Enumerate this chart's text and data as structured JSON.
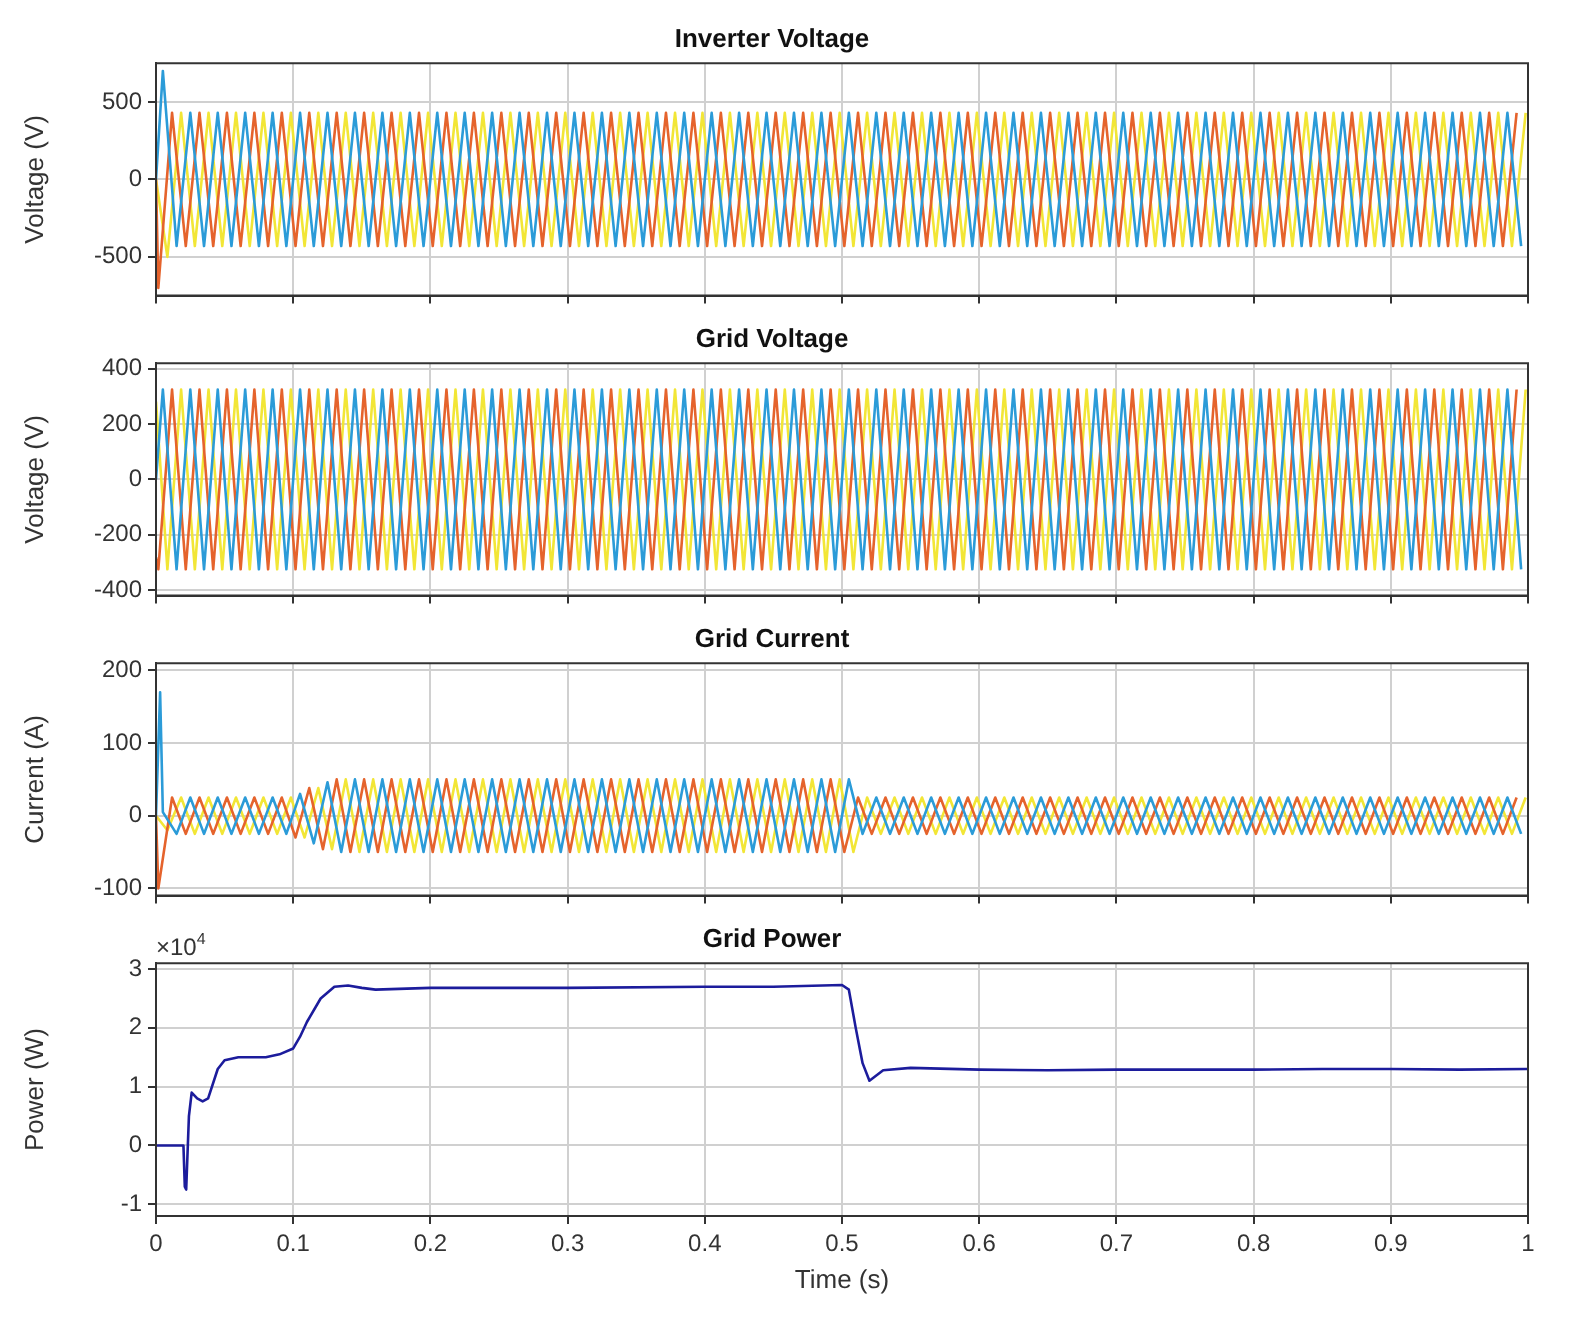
{
  "chart_data": [
    {
      "type": "line",
      "title": "Inverter Voltage",
      "ylabel": "Voltage (V)",
      "xlim": [
        0,
        1
      ],
      "xticks": [
        0,
        0.1,
        0.2,
        0.3,
        0.4,
        0.5,
        0.6,
        0.7,
        0.8,
        0.9,
        1
      ],
      "ylim": [
        -750,
        750
      ],
      "yticks": [
        -500,
        0,
        500
      ],
      "grid": true,
      "tick_labels": "y",
      "series": [
        {
          "color": "#2b9bd8",
          "x": [
            0,
            0.005,
            0.015,
            0.025,
            0.035,
            0.045,
            0.055,
            0.065,
            0.075,
            0.085,
            0.095,
            0.105,
            0.115,
            0.125,
            0.135,
            0.145,
            0.155,
            0.165,
            0.175,
            0.185,
            0.195,
            0.205,
            0.215,
            0.225,
            0.235,
            0.245,
            0.255,
            0.265,
            0.275,
            0.285,
            0.295,
            0.305,
            0.315,
            0.325,
            0.335,
            0.345,
            0.355,
            0.365,
            0.375,
            0.385,
            0.395,
            0.405,
            0.415,
            0.425,
            0.435,
            0.445,
            0.455,
            0.465,
            0.475,
            0.485,
            0.495,
            0.505,
            0.515,
            0.525,
            0.535,
            0.545,
            0.555,
            0.565,
            0.575,
            0.585,
            0.595,
            0.605,
            0.615,
            0.625,
            0.635,
            0.645,
            0.655,
            0.665,
            0.675,
            0.685,
            0.695,
            0.705,
            0.715,
            0.725,
            0.735,
            0.745,
            0.755,
            0.765,
            0.775,
            0.785,
            0.795,
            0.805,
            0.815,
            0.825,
            0.835,
            0.845,
            0.855,
            0.865,
            0.875,
            0.885,
            0.895,
            0.905,
            0.915,
            0.925,
            0.935,
            0.945,
            0.955,
            0.965,
            0.975,
            0.985,
            0.995
          ],
          "values": [
            0,
            700,
            -430,
            430,
            -430,
            430,
            -430,
            430,
            -430,
            430,
            -430,
            430,
            -430,
            430,
            -430,
            430,
            -430,
            430,
            -430,
            430,
            -430,
            430,
            -430,
            430,
            -430,
            430,
            -430,
            430,
            -430,
            430,
            -430,
            430,
            -430,
            430,
            -430,
            430,
            -430,
            430,
            -430,
            430,
            -430,
            430,
            -430,
            430,
            -430,
            430,
            -430,
            430,
            -430,
            430,
            -430,
            430,
            -430,
            430,
            -430,
            430,
            -430,
            430,
            -430,
            430,
            -430,
            430,
            -430,
            430,
            -430,
            430,
            -430,
            430,
            -430,
            430,
            -430,
            430,
            -430,
            430,
            -430,
            430,
            -430,
            430,
            -430,
            430,
            -430,
            430,
            -430,
            430,
            -430,
            430,
            -430,
            430,
            -430,
            430,
            -430,
            430,
            -430,
            430,
            -430,
            430,
            -430,
            430,
            -430,
            430,
            -430
          ]
        },
        {
          "color": "#e5632c",
          "x": [
            0,
            0.0017,
            0.0117,
            0.0217,
            0.0317,
            0.0417,
            0.0517,
            0.0617,
            0.0717,
            0.0817,
            0.0917,
            0.1017,
            0.1117,
            0.1217,
            0.1317,
            0.1417,
            0.1517,
            0.1617,
            0.1717,
            0.1817,
            0.1917,
            0.2017,
            0.2117,
            0.2217,
            0.2317,
            0.2417,
            0.2517,
            0.2617,
            0.2717,
            0.2817,
            0.2917,
            0.3017,
            0.3117,
            0.3217,
            0.3317,
            0.3417,
            0.3517,
            0.3617,
            0.3717,
            0.3817,
            0.3917,
            0.4017,
            0.4117,
            0.4217,
            0.4317,
            0.4417,
            0.4517,
            0.4617,
            0.4717,
            0.4817,
            0.4917,
            0.5017,
            0.5117,
            0.5217,
            0.5317,
            0.5417,
            0.5517,
            0.5617,
            0.5717,
            0.5817,
            0.5917,
            0.6017,
            0.6117,
            0.6217,
            0.6317,
            0.6417,
            0.6517,
            0.6617,
            0.6717,
            0.6817,
            0.6917,
            0.7017,
            0.7117,
            0.7217,
            0.7317,
            0.7417,
            0.7517,
            0.7617,
            0.7717,
            0.7817,
            0.7917,
            0.8017,
            0.8117,
            0.8217,
            0.8317,
            0.8417,
            0.8517,
            0.8617,
            0.8717,
            0.8817,
            0.8917,
            0.9017,
            0.9117,
            0.9217,
            0.9317,
            0.9417,
            0.9517,
            0.9617,
            0.9717,
            0.9817,
            0.9917
          ],
          "values": [
            0,
            -700,
            430,
            -430,
            430,
            -430,
            430,
            -430,
            430,
            -430,
            430,
            -430,
            430,
            -430,
            430,
            -430,
            430,
            -430,
            430,
            -430,
            430,
            -430,
            430,
            -430,
            430,
            -430,
            430,
            -430,
            430,
            -430,
            430,
            -430,
            430,
            -430,
            430,
            -430,
            430,
            -430,
            430,
            -430,
            430,
            -430,
            430,
            -430,
            430,
            -430,
            430,
            -430,
            430,
            -430,
            430,
            -430,
            430,
            -430,
            430,
            -430,
            430,
            -430,
            430,
            -430,
            430,
            -430,
            430,
            -430,
            430,
            -430,
            430,
            -430,
            430,
            -430,
            430,
            -430,
            430,
            -430,
            430,
            -430,
            430,
            -430,
            430,
            -430,
            430,
            -430,
            430,
            -430,
            430,
            -430,
            430,
            -430,
            430,
            -430,
            430,
            -430,
            430,
            -430,
            430,
            -430,
            430,
            -430,
            430,
            -430,
            430
          ]
        },
        {
          "color": "#f2e636",
          "x": [
            0,
            0.0083,
            0.0183,
            0.0283,
            0.0383,
            0.0483,
            0.0583,
            0.0683,
            0.0783,
            0.0883,
            0.0983,
            0.1083,
            0.1183,
            0.1283,
            0.1383,
            0.1483,
            0.1583,
            0.1683,
            0.1783,
            0.1883,
            0.1983,
            0.2083,
            0.2183,
            0.2283,
            0.2383,
            0.2483,
            0.2583,
            0.2683,
            0.2783,
            0.2883,
            0.2983,
            0.3083,
            0.3183,
            0.3283,
            0.3383,
            0.3483,
            0.3583,
            0.3683,
            0.3783,
            0.3883,
            0.3983,
            0.4083,
            0.4183,
            0.4283,
            0.4383,
            0.4483,
            0.4583,
            0.4683,
            0.4783,
            0.4883,
            0.4983,
            0.5083,
            0.5183,
            0.5283,
            0.5383,
            0.5483,
            0.5583,
            0.5683,
            0.5783,
            0.5883,
            0.5983,
            0.6083,
            0.6183,
            0.6283,
            0.6383,
            0.6483,
            0.6583,
            0.6683,
            0.6783,
            0.6883,
            0.6983,
            0.7083,
            0.7183,
            0.7283,
            0.7383,
            0.7483,
            0.7583,
            0.7683,
            0.7783,
            0.7883,
            0.7983,
            0.8083,
            0.8183,
            0.8283,
            0.8383,
            0.8483,
            0.8583,
            0.8683,
            0.8783,
            0.8883,
            0.8983,
            0.9083,
            0.9183,
            0.9283,
            0.9383,
            0.9483,
            0.9583,
            0.9683,
            0.9783,
            0.9883,
            0.9983
          ],
          "values": [
            0,
            -500,
            430,
            -430,
            430,
            -430,
            430,
            -430,
            430,
            -430,
            430,
            -430,
            430,
            -430,
            430,
            -430,
            430,
            -430,
            430,
            -430,
            430,
            -430,
            430,
            -430,
            430,
            -430,
            430,
            -430,
            430,
            -430,
            430,
            -430,
            430,
            -430,
            430,
            -430,
            430,
            -430,
            430,
            -430,
            430,
            -430,
            430,
            -430,
            430,
            -430,
            430,
            -430,
            430,
            -430,
            430,
            -430,
            430,
            -430,
            430,
            -430,
            430,
            -430,
            430,
            -430,
            430,
            -430,
            430,
            -430,
            430,
            -430,
            430,
            -430,
            430,
            -430,
            430,
            -430,
            430,
            -430,
            430,
            -430,
            430,
            -430,
            430,
            -430,
            430,
            -430,
            430,
            -430,
            430,
            -430,
            430,
            -430,
            430,
            -430,
            430,
            -430,
            430,
            -430,
            430,
            -430,
            430,
            -430,
            430,
            -430,
            430
          ]
        }
      ]
    },
    {
      "type": "line",
      "title": "Grid Voltage",
      "ylabel": "Voltage (V)",
      "xlim": [
        0,
        1
      ],
      "xticks": [
        0,
        0.1,
        0.2,
        0.3,
        0.4,
        0.5,
        0.6,
        0.7,
        0.8,
        0.9,
        1
      ],
      "ylim": [
        -420,
        420
      ],
      "yticks": [
        -400,
        -200,
        0,
        200,
        400
      ],
      "grid": true,
      "tick_labels": "y",
      "series": [
        {
          "color": "#2b9bd8",
          "x": [
            0,
            0.005,
            0.015,
            0.025,
            0.035,
            0.045,
            0.055,
            0.065,
            0.075,
            0.085,
            0.095,
            0.105,
            0.115,
            0.125,
            0.135,
            0.145,
            0.155,
            0.165,
            0.175,
            0.185,
            0.195,
            0.205,
            0.215,
            0.225,
            0.235,
            0.245,
            0.255,
            0.265,
            0.275,
            0.285,
            0.295,
            0.305,
            0.315,
            0.325,
            0.335,
            0.345,
            0.355,
            0.365,
            0.375,
            0.385,
            0.395,
            0.405,
            0.415,
            0.425,
            0.435,
            0.445,
            0.455,
            0.465,
            0.475,
            0.485,
            0.495,
            0.505,
            0.515,
            0.525,
            0.535,
            0.545,
            0.555,
            0.565,
            0.575,
            0.585,
            0.595,
            0.605,
            0.615,
            0.625,
            0.635,
            0.645,
            0.655,
            0.665,
            0.675,
            0.685,
            0.695,
            0.705,
            0.715,
            0.725,
            0.735,
            0.745,
            0.755,
            0.765,
            0.775,
            0.785,
            0.795,
            0.805,
            0.815,
            0.825,
            0.835,
            0.845,
            0.855,
            0.865,
            0.875,
            0.885,
            0.895,
            0.905,
            0.915,
            0.925,
            0.935,
            0.945,
            0.955,
            0.965,
            0.975,
            0.985,
            0.995
          ],
          "values": [
            0,
            325,
            -325,
            325,
            -325,
            325,
            -325,
            325,
            -325,
            325,
            -325,
            325,
            -325,
            325,
            -325,
            325,
            -325,
            325,
            -325,
            325,
            -325,
            325,
            -325,
            325,
            -325,
            325,
            -325,
            325,
            -325,
            325,
            -325,
            325,
            -325,
            325,
            -325,
            325,
            -325,
            325,
            -325,
            325,
            -325,
            325,
            -325,
            325,
            -325,
            325,
            -325,
            325,
            -325,
            325,
            -325,
            325,
            -325,
            325,
            -325,
            325,
            -325,
            325,
            -325,
            325,
            -325,
            325,
            -325,
            325,
            -325,
            325,
            -325,
            325,
            -325,
            325,
            -325,
            325,
            -325,
            325,
            -325,
            325,
            -325,
            325,
            -325,
            325,
            -325,
            325,
            -325,
            325,
            -325,
            325,
            -325,
            325,
            -325,
            325,
            -325,
            325,
            -325,
            325,
            -325,
            325,
            -325,
            325,
            -325,
            325,
            -325
          ]
        },
        {
          "color": "#e5632c",
          "x": [
            0,
            0.0017,
            0.0117,
            0.0217,
            0.0317,
            0.0417,
            0.0517,
            0.0617,
            0.0717,
            0.0817,
            0.0917,
            0.1017,
            0.1117,
            0.1217,
            0.1317,
            0.1417,
            0.1517,
            0.1617,
            0.1717,
            0.1817,
            0.1917,
            0.2017,
            0.2117,
            0.2217,
            0.2317,
            0.2417,
            0.2517,
            0.2617,
            0.2717,
            0.2817,
            0.2917,
            0.3017,
            0.3117,
            0.3217,
            0.3317,
            0.3417,
            0.3517,
            0.3617,
            0.3717,
            0.3817,
            0.3917,
            0.4017,
            0.4117,
            0.4217,
            0.4317,
            0.4417,
            0.4517,
            0.4617,
            0.4717,
            0.4817,
            0.4917,
            0.5017,
            0.5117,
            0.5217,
            0.5317,
            0.5417,
            0.5517,
            0.5617,
            0.5717,
            0.5817,
            0.5917,
            0.6017,
            0.6117,
            0.6217,
            0.6317,
            0.6417,
            0.6517,
            0.6617,
            0.6717,
            0.6817,
            0.6917,
            0.7017,
            0.7117,
            0.7217,
            0.7317,
            0.7417,
            0.7517,
            0.7617,
            0.7717,
            0.7817,
            0.7917,
            0.8017,
            0.8117,
            0.8217,
            0.8317,
            0.8417,
            0.8517,
            0.8617,
            0.8717,
            0.8817,
            0.8917,
            0.9017,
            0.9117,
            0.9217,
            0.9317,
            0.9417,
            0.9517,
            0.9617,
            0.9717,
            0.9817,
            0.9917
          ],
          "values": [
            -281,
            -325,
            325,
            -325,
            325,
            -325,
            325,
            -325,
            325,
            -325,
            325,
            -325,
            325,
            -325,
            325,
            -325,
            325,
            -325,
            325,
            -325,
            325,
            -325,
            325,
            -325,
            325,
            -325,
            325,
            -325,
            325,
            -325,
            325,
            -325,
            325,
            -325,
            325,
            -325,
            325,
            -325,
            325,
            -325,
            325,
            -325,
            325,
            -325,
            325,
            -325,
            325,
            -325,
            325,
            -325,
            325,
            -325,
            325,
            -325,
            325,
            -325,
            325,
            -325,
            325,
            -325,
            325,
            -325,
            325,
            -325,
            325,
            -325,
            325,
            -325,
            325,
            -325,
            325,
            -325,
            325,
            -325,
            325,
            -325,
            325,
            -325,
            325,
            -325,
            325,
            -325,
            325,
            -325,
            325,
            -325,
            325,
            -325,
            325,
            -325,
            325,
            -325,
            325,
            -325,
            325,
            -325,
            325,
            -325,
            325,
            -325,
            325
          ]
        },
        {
          "color": "#f2e636",
          "x": [
            0,
            0.0083,
            0.0183,
            0.0283,
            0.0383,
            0.0483,
            0.0583,
            0.0683,
            0.0783,
            0.0883,
            0.0983,
            0.1083,
            0.1183,
            0.1283,
            0.1383,
            0.1483,
            0.1583,
            0.1683,
            0.1783,
            0.1883,
            0.1983,
            0.2083,
            0.2183,
            0.2283,
            0.2383,
            0.2483,
            0.2583,
            0.2683,
            0.2783,
            0.2883,
            0.2983,
            0.3083,
            0.3183,
            0.3283,
            0.3383,
            0.3483,
            0.3583,
            0.3683,
            0.3783,
            0.3883,
            0.3983,
            0.4083,
            0.4183,
            0.4283,
            0.4383,
            0.4483,
            0.4583,
            0.4683,
            0.4783,
            0.4883,
            0.4983,
            0.5083,
            0.5183,
            0.5283,
            0.5383,
            0.5483,
            0.5583,
            0.5683,
            0.5783,
            0.5883,
            0.5983,
            0.6083,
            0.6183,
            0.6283,
            0.6383,
            0.6483,
            0.6583,
            0.6683,
            0.6783,
            0.6883,
            0.6983,
            0.7083,
            0.7183,
            0.7283,
            0.7383,
            0.7483,
            0.7583,
            0.7683,
            0.7783,
            0.7883,
            0.7983,
            0.8083,
            0.8183,
            0.8283,
            0.8383,
            0.8483,
            0.8583,
            0.8683,
            0.8783,
            0.8883,
            0.8983,
            0.9083,
            0.9183,
            0.9283,
            0.9383,
            0.9483,
            0.9583,
            0.9683,
            0.9783,
            0.9883,
            0.9983
          ],
          "values": [
            281,
            -325,
            325,
            -325,
            325,
            -325,
            325,
            -325,
            325,
            -325,
            325,
            -325,
            325,
            -325,
            325,
            -325,
            325,
            -325,
            325,
            -325,
            325,
            -325,
            325,
            -325,
            325,
            -325,
            325,
            -325,
            325,
            -325,
            325,
            -325,
            325,
            -325,
            325,
            -325,
            325,
            -325,
            325,
            -325,
            325,
            -325,
            325,
            -325,
            325,
            -325,
            325,
            -325,
            325,
            -325,
            325,
            -325,
            325,
            -325,
            325,
            -325,
            325,
            -325,
            325,
            -325,
            325,
            -325,
            325,
            -325,
            325,
            -325,
            325,
            -325,
            325,
            -325,
            325,
            -325,
            325,
            -325,
            325,
            -325,
            325,
            -325,
            325,
            -325,
            325,
            -325,
            325,
            -325,
            325,
            -325,
            325,
            -325,
            325,
            -325,
            325,
            -325,
            325,
            -325,
            325,
            -325,
            325,
            -325,
            325,
            -325,
            325
          ]
        }
      ]
    },
    {
      "type": "line",
      "title": "Grid Current",
      "ylabel": "Current (A)",
      "xlim": [
        0,
        1
      ],
      "xticks": [
        0,
        0.1,
        0.2,
        0.3,
        0.4,
        0.5,
        0.6,
        0.7,
        0.8,
        0.9,
        1
      ],
      "ylim": [
        -110,
        210
      ],
      "yticks": [
        -100,
        0,
        100,
        200
      ],
      "grid": true,
      "tick_labels": "y",
      "series": [
        {
          "color": "#2b9bd8",
          "x": [
            0,
            0.003,
            0.005,
            0.015,
            0.025,
            0.035,
            0.045,
            0.055,
            0.065,
            0.075,
            0.085,
            0.095,
            0.105,
            0.115,
            0.125,
            0.135,
            0.145,
            0.155,
            0.165,
            0.175,
            0.185,
            0.195,
            0.205,
            0.215,
            0.225,
            0.235,
            0.245,
            0.255,
            0.265,
            0.275,
            0.285,
            0.295,
            0.305,
            0.315,
            0.325,
            0.335,
            0.345,
            0.355,
            0.365,
            0.375,
            0.385,
            0.395,
            0.405,
            0.415,
            0.425,
            0.435,
            0.445,
            0.455,
            0.465,
            0.475,
            0.485,
            0.495,
            0.505,
            0.515,
            0.525,
            0.535,
            0.545,
            0.555,
            0.565,
            0.575,
            0.585,
            0.595,
            0.605,
            0.615,
            0.625,
            0.635,
            0.645,
            0.655,
            0.665,
            0.675,
            0.685,
            0.695,
            0.705,
            0.715,
            0.725,
            0.735,
            0.745,
            0.755,
            0.765,
            0.775,
            0.785,
            0.795,
            0.805,
            0.815,
            0.825,
            0.835,
            0.845,
            0.855,
            0.865,
            0.875,
            0.885,
            0.895,
            0.905,
            0.915,
            0.925,
            0.935,
            0.945,
            0.955,
            0.965,
            0.975,
            0.985,
            0.995
          ],
          "values": [
            0,
            170,
            5,
            -25,
            25,
            -25,
            25,
            -25,
            25,
            -25,
            25,
            -25,
            30,
            -38,
            46,
            -50,
            50,
            -50,
            50,
            -50,
            50,
            -50,
            50,
            -50,
            50,
            -50,
            50,
            -50,
            50,
            -50,
            50,
            -50,
            50,
            -50,
            50,
            -50,
            50,
            -50,
            50,
            -50,
            50,
            -50,
            50,
            -50,
            50,
            -50,
            50,
            -50,
            50,
            -50,
            50,
            -50,
            50,
            -25,
            25,
            -25,
            25,
            -25,
            25,
            -25,
            25,
            -25,
            25,
            -25,
            25,
            -25,
            25,
            -25,
            25,
            -25,
            25,
            -25,
            25,
            -25,
            25,
            -25,
            25,
            -25,
            25,
            -25,
            25,
            -25,
            25,
            -25,
            25,
            -25,
            25,
            -25,
            25,
            -25,
            25,
            -25,
            25,
            -25,
            25,
            -25,
            25,
            -25,
            25,
            -25,
            25,
            -25
          ]
        },
        {
          "color": "#e5632c",
          "x": [
            0,
            0.0017,
            0.0117,
            0.0217,
            0.0317,
            0.0417,
            0.0517,
            0.0617,
            0.0717,
            0.0817,
            0.0917,
            0.1017,
            0.1117,
            0.1217,
            0.1317,
            0.1417,
            0.1517,
            0.1617,
            0.1717,
            0.1817,
            0.1917,
            0.2017,
            0.2117,
            0.2217,
            0.2317,
            0.2417,
            0.2517,
            0.2617,
            0.2717,
            0.2817,
            0.2917,
            0.3017,
            0.3117,
            0.3217,
            0.3317,
            0.3417,
            0.3517,
            0.3617,
            0.3717,
            0.3817,
            0.3917,
            0.4017,
            0.4117,
            0.4217,
            0.4317,
            0.4417,
            0.4517,
            0.4617,
            0.4717,
            0.4817,
            0.4917,
            0.5017,
            0.5117,
            0.5217,
            0.5317,
            0.5417,
            0.5517,
            0.5617,
            0.5717,
            0.5817,
            0.5917,
            0.6017,
            0.6117,
            0.6217,
            0.6317,
            0.6417,
            0.6517,
            0.6617,
            0.6717,
            0.6817,
            0.6917,
            0.7017,
            0.7117,
            0.7217,
            0.7317,
            0.7417,
            0.7517,
            0.7617,
            0.7717,
            0.7817,
            0.7917,
            0.8017,
            0.8117,
            0.8217,
            0.8317,
            0.8417,
            0.8517,
            0.8617,
            0.8717,
            0.8817,
            0.8917,
            0.9017,
            0.9117,
            0.9217,
            0.9317,
            0.9417,
            0.9517,
            0.9617,
            0.9717,
            0.9817,
            0.9917
          ],
          "values": [
            0,
            -100,
            25,
            -25,
            25,
            -25,
            25,
            -25,
            25,
            -25,
            25,
            -30,
            38,
            -46,
            50,
            -50,
            50,
            -50,
            50,
            -50,
            50,
            -50,
            50,
            -50,
            50,
            -50,
            50,
            -50,
            50,
            -50,
            50,
            -50,
            50,
            -50,
            50,
            -50,
            50,
            -50,
            50,
            -50,
            50,
            -50,
            50,
            -50,
            50,
            -50,
            50,
            -50,
            50,
            -50,
            50,
            -50,
            25,
            -25,
            25,
            -25,
            25,
            -25,
            25,
            -25,
            25,
            -25,
            25,
            -25,
            25,
            -25,
            25,
            -25,
            25,
            -25,
            25,
            -25,
            25,
            -25,
            25,
            -25,
            25,
            -25,
            25,
            -25,
            25,
            -25,
            25,
            -25,
            25,
            -25,
            25,
            -25,
            25,
            -25,
            25,
            -25,
            25,
            -25,
            25,
            -25,
            25,
            -25,
            25,
            -25,
            25
          ]
        },
        {
          "color": "#f2e636",
          "x": [
            0,
            0.0083,
            0.0183,
            0.0283,
            0.0383,
            0.0483,
            0.0583,
            0.0683,
            0.0783,
            0.0883,
            0.0983,
            0.1083,
            0.1183,
            0.1283,
            0.1383,
            0.1483,
            0.1583,
            0.1683,
            0.1783,
            0.1883,
            0.1983,
            0.2083,
            0.2183,
            0.2283,
            0.2383,
            0.2483,
            0.2583,
            0.2683,
            0.2783,
            0.2883,
            0.2983,
            0.3083,
            0.3183,
            0.3283,
            0.3383,
            0.3483,
            0.3583,
            0.3683,
            0.3783,
            0.3883,
            0.3983,
            0.4083,
            0.4183,
            0.4283,
            0.4383,
            0.4483,
            0.4583,
            0.4683,
            0.4783,
            0.4883,
            0.4983,
            0.5083,
            0.5183,
            0.5283,
            0.5383,
            0.5483,
            0.5583,
            0.5683,
            0.5783,
            0.5883,
            0.5983,
            0.6083,
            0.6183,
            0.6283,
            0.6383,
            0.6483,
            0.6583,
            0.6683,
            0.6783,
            0.6883,
            0.6983,
            0.7083,
            0.7183,
            0.7283,
            0.7383,
            0.7483,
            0.7583,
            0.7683,
            0.7783,
            0.7883,
            0.7983,
            0.8083,
            0.8183,
            0.8283,
            0.8383,
            0.8483,
            0.8583,
            0.8683,
            0.8783,
            0.8883,
            0.8983,
            0.9083,
            0.9183,
            0.9283,
            0.9383,
            0.9483,
            0.9583,
            0.9683,
            0.9783,
            0.9883,
            0.9983
          ],
          "values": [
            0,
            -20,
            25,
            -25,
            25,
            -25,
            25,
            -25,
            25,
            -25,
            25,
            -30,
            38,
            -46,
            50,
            -50,
            50,
            -50,
            50,
            -50,
            50,
            -50,
            50,
            -50,
            50,
            -50,
            50,
            -50,
            50,
            -50,
            50,
            -50,
            50,
            -50,
            50,
            -50,
            50,
            -50,
            50,
            -50,
            50,
            -50,
            50,
            -50,
            50,
            -50,
            50,
            -50,
            50,
            -50,
            50,
            -50,
            25,
            -25,
            25,
            -25,
            25,
            -25,
            25,
            -25,
            25,
            -25,
            25,
            -25,
            25,
            -25,
            25,
            -25,
            25,
            -25,
            25,
            -25,
            25,
            -25,
            25,
            -25,
            25,
            -25,
            25,
            -25,
            25,
            -25,
            25,
            -25,
            25,
            -25,
            25,
            -25,
            25,
            -25,
            25,
            -25,
            25,
            -25,
            25,
            -25,
            25,
            -25,
            25,
            -25,
            25
          ]
        }
      ]
    },
    {
      "type": "line",
      "title": "Grid Power",
      "xlabel": "Time (s)",
      "ylabel": "Power (W)",
      "annotations": [
        "×10$^{4}$"
      ],
      "xlim": [
        0,
        1
      ],
      "xticks": [
        0,
        0.1,
        0.2,
        0.3,
        0.4,
        0.5,
        0.6,
        0.7,
        0.8,
        0.9,
        1
      ],
      "ylim": [
        -1.2,
        3.1
      ],
      "yticks": [
        -1,
        0,
        1,
        2,
        3
      ],
      "grid": true,
      "series": [
        {
          "color": "#1c1c9c",
          "x": [
            0,
            0.02,
            0.021,
            0.022,
            0.024,
            0.026,
            0.03,
            0.034,
            0.038,
            0.045,
            0.05,
            0.06,
            0.08,
            0.09,
            0.1,
            0.105,
            0.11,
            0.12,
            0.13,
            0.14,
            0.15,
            0.16,
            0.2,
            0.3,
            0.4,
            0.45,
            0.5,
            0.505,
            0.51,
            0.515,
            0.52,
            0.53,
            0.55,
            0.6,
            0.65,
            0.7,
            0.8,
            0.85,
            0.9,
            0.95,
            1
          ],
          "values": [
            0,
            0,
            -0.7,
            -0.75,
            0.5,
            0.9,
            0.8,
            0.75,
            0.8,
            1.3,
            1.45,
            1.5,
            1.5,
            1.55,
            1.65,
            1.85,
            2.1,
            2.5,
            2.7,
            2.72,
            2.68,
            2.65,
            2.68,
            2.68,
            2.7,
            2.7,
            2.73,
            2.65,
            2,
            1.4,
            1.1,
            1.28,
            1.32,
            1.29,
            1.28,
            1.29,
            1.29,
            1.3,
            1.3,
            1.29,
            1.3
          ]
        }
      ]
    }
  ]
}
